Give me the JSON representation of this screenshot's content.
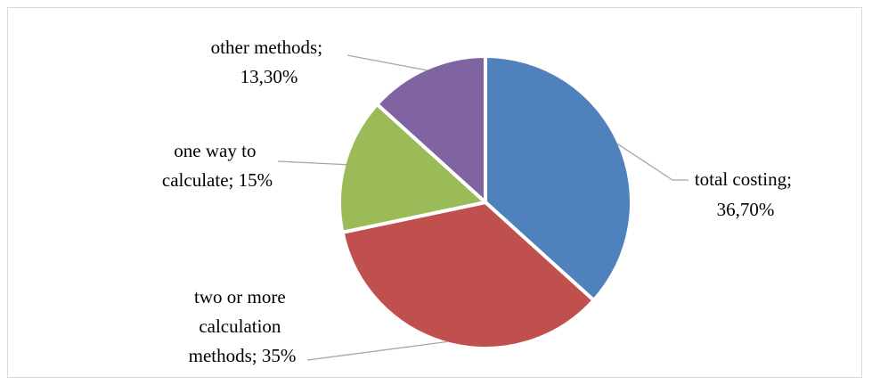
{
  "chart_data": {
    "type": "pie",
    "title": "",
    "decimal_separator": ",",
    "series": [
      {
        "values": [
          36.7,
          35,
          15,
          13.3
        ],
        "categories": [
          "total costing",
          "two or more calculation methods",
          "one way to calculate",
          "other methods"
        ]
      }
    ],
    "slices": [
      {
        "category": "total costing",
        "value": 36.7,
        "color": "#4F81BD",
        "label_lines": [
          "total costing;",
          "36,70%"
        ]
      },
      {
        "category": "two or more calculation methods",
        "value": 35,
        "color": "#C0504D",
        "label_lines": [
          "two or more",
          "calculation",
          "methods; 35%"
        ]
      },
      {
        "category": "one way to calculate",
        "value": 15,
        "color": "#9BBB59",
        "label_lines": [
          "one way to",
          "calculate; 15%"
        ]
      },
      {
        "category": "other methods",
        "value": 13.3,
        "color": "#8064A2",
        "label_lines": [
          "other methods;",
          "13,30%"
        ]
      }
    ],
    "start_angle_deg": 0,
    "direction": "clockwise",
    "legend": "none",
    "data_labels": "outside-with-leader-lines"
  }
}
